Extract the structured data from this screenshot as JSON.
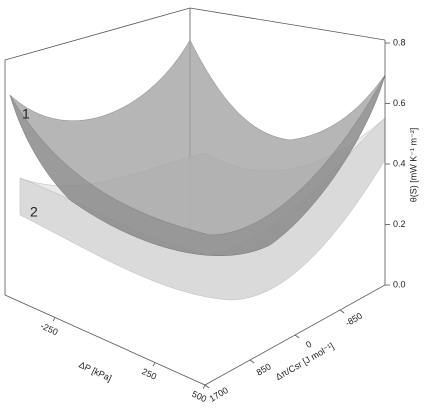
{
  "chart_data": {
    "type": "surface3d",
    "surface_labels": [
      "1",
      "2"
    ],
    "xlabel": "ΔP [kPa]",
    "ylabel": "Δπ/Csr [J mol⁻¹]",
    "zlabel": "θ(S) [mW K⁻¹ m⁻²]",
    "xlim": [
      -500,
      500
    ],
    "xticks": [
      -250,
      250,
      500
    ],
    "ylim": [
      1700,
      -1700
    ],
    "yticks": [
      1700,
      850,
      0,
      -850
    ],
    "zlim": [
      0,
      0.8
    ],
    "zticks": [
      {
        "value": 0,
        "label": "0.0"
      },
      0.2,
      0.4,
      0.6,
      0.8
    ]
  }
}
